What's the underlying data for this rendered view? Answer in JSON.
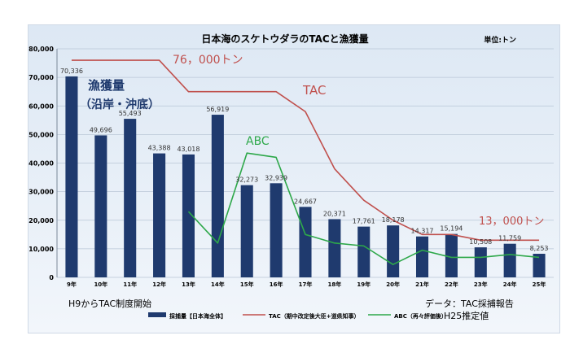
{
  "chart_data": {
    "type": "bar",
    "title": "日本海のスケトウダラのTACと漁獲量",
    "unit_label": "単位:トン",
    "categories": [
      "9年",
      "10年",
      "11年",
      "12年",
      "13年",
      "14年",
      "15年",
      "16年",
      "17年",
      "18年",
      "19年",
      "20年",
      "21年",
      "22年",
      "23年",
      "24年",
      "25年"
    ],
    "ylim": [
      0,
      80000
    ],
    "yticks": [
      0,
      10000,
      20000,
      30000,
      40000,
      50000,
      60000,
      70000,
      80000
    ],
    "ytick_labels": [
      "0",
      "10,000",
      "20,000",
      "30,000",
      "40,000",
      "50,000",
      "60,000",
      "70,000",
      "80,000"
    ],
    "grid": true,
    "series": [
      {
        "name": "採捕量【日本海全体】",
        "type": "bar",
        "color": "#1f3a6e",
        "values": [
          70336,
          49696,
          55493,
          43388,
          43018,
          56919,
          32273,
          32939,
          24667,
          20371,
          17761,
          18178,
          14317,
          15194,
          10508,
          11759,
          8253
        ],
        "value_labels": [
          "70,336",
          "49,696",
          "55,493",
          "43,388",
          "43,018",
          "56,919",
          "32,273",
          "32,939",
          "24,667",
          "20,371",
          "17,761",
          "18,178",
          "14,317",
          "15,194",
          "10,508",
          "11,759",
          "8,253"
        ]
      },
      {
        "name": "TAC（期中改定後大臣+道県知事）",
        "type": "line",
        "color": "#c0504d",
        "values": [
          76000,
          76000,
          76000,
          76000,
          65000,
          65000,
          65000,
          65000,
          58000,
          38000,
          27000,
          20000,
          15000,
          15000,
          13000,
          13000,
          13000
        ]
      },
      {
        "name": "ABC（再々評価後）",
        "type": "line",
        "color": "#2ea84a",
        "values": [
          null,
          null,
          null,
          null,
          23000,
          12000,
          43500,
          42000,
          15000,
          12000,
          11000,
          4500,
          9500,
          7000,
          7000,
          8000,
          7000
        ]
      }
    ],
    "annotations": {
      "tac_start": "76，000トン",
      "tac_label": "TAC",
      "abc_label": "ABC",
      "catch_label_1": "漁獲量",
      "catch_label_2": "（沿岸・沖底）",
      "tac_end": "13，000トン"
    },
    "footer": {
      "left": "H9からTAC制度開始",
      "right": "データ：TAC採捕報告",
      "abc_note": "H25推定値"
    },
    "legend": {
      "position": "bottom"
    }
  }
}
